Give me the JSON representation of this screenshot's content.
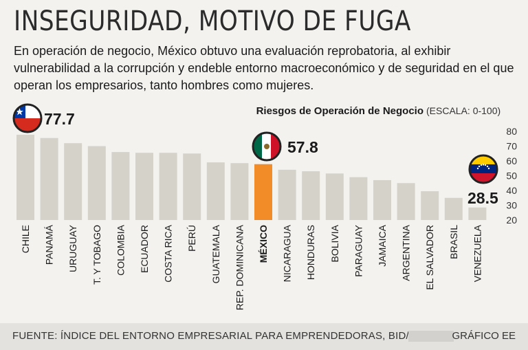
{
  "header": {
    "title": "INSEGURIDAD, MOTIVO DE FUGA",
    "subtitle": "En operación de negocio, México obtuvo una evaluación reprobatoria, al exhibir vulnerabilidad a la corrupción y endeble entorno macroeconómico y de seguridad en el que operan los empresarios, tanto hombres como mujeres."
  },
  "footer": {
    "source": "FUENTE: ÍNDICE DEL ENTORNO EMPRESARIAL PARA EMPRENDEDORAS, BID/EIU.",
    "credit": "GRÁFICO EE"
  },
  "colors": {
    "bar": "#d4d2c9",
    "highlight": "#f28c28",
    "text": "#1a1a1a"
  },
  "chart_data": {
    "type": "bar",
    "title": "Riesgos de Operación de Negocio",
    "title_suffix": "(ESCALA: 0-100)",
    "categories": [
      "CHILE",
      "PANAMÁ",
      "URUGUAY",
      "T. Y TOBAGO",
      "COLOMBIA",
      "ECUADOR",
      "COSTA RICA",
      "PERÚ",
      "GUATEMALA",
      "REP. DOMINICANA",
      "MÉXICO",
      "NICARAGUA",
      "HONDURAS",
      "BOLIVIA",
      "PARAGUAY",
      "JAMAICA",
      "ARGENTINA",
      "EL SALVADOR",
      "BRASIL",
      "VENEZUELA"
    ],
    "values": [
      77.7,
      75.5,
      72,
      70,
      66,
      65.5,
      65.5,
      65,
      59,
      58.5,
      57.8,
      54,
      53,
      51.5,
      49,
      47,
      45,
      39.5,
      35,
      28.5
    ],
    "highlight": "MÉXICO",
    "ylim": [
      20,
      80
    ],
    "yticks": [
      20,
      30,
      40,
      50,
      60,
      70,
      80
    ],
    "ytick_labels": [
      "20",
      "30",
      "40",
      "50",
      "60",
      "70",
      "80"
    ],
    "annotations": [
      {
        "country": "CHILE",
        "label": "77.7",
        "flag": "chile-flag"
      },
      {
        "country": "MÉXICO",
        "label": "57.8",
        "flag": "mexico-flag"
      },
      {
        "country": "VENEZUELA",
        "label": "28.5",
        "flag": "venezuela-flag"
      }
    ]
  }
}
